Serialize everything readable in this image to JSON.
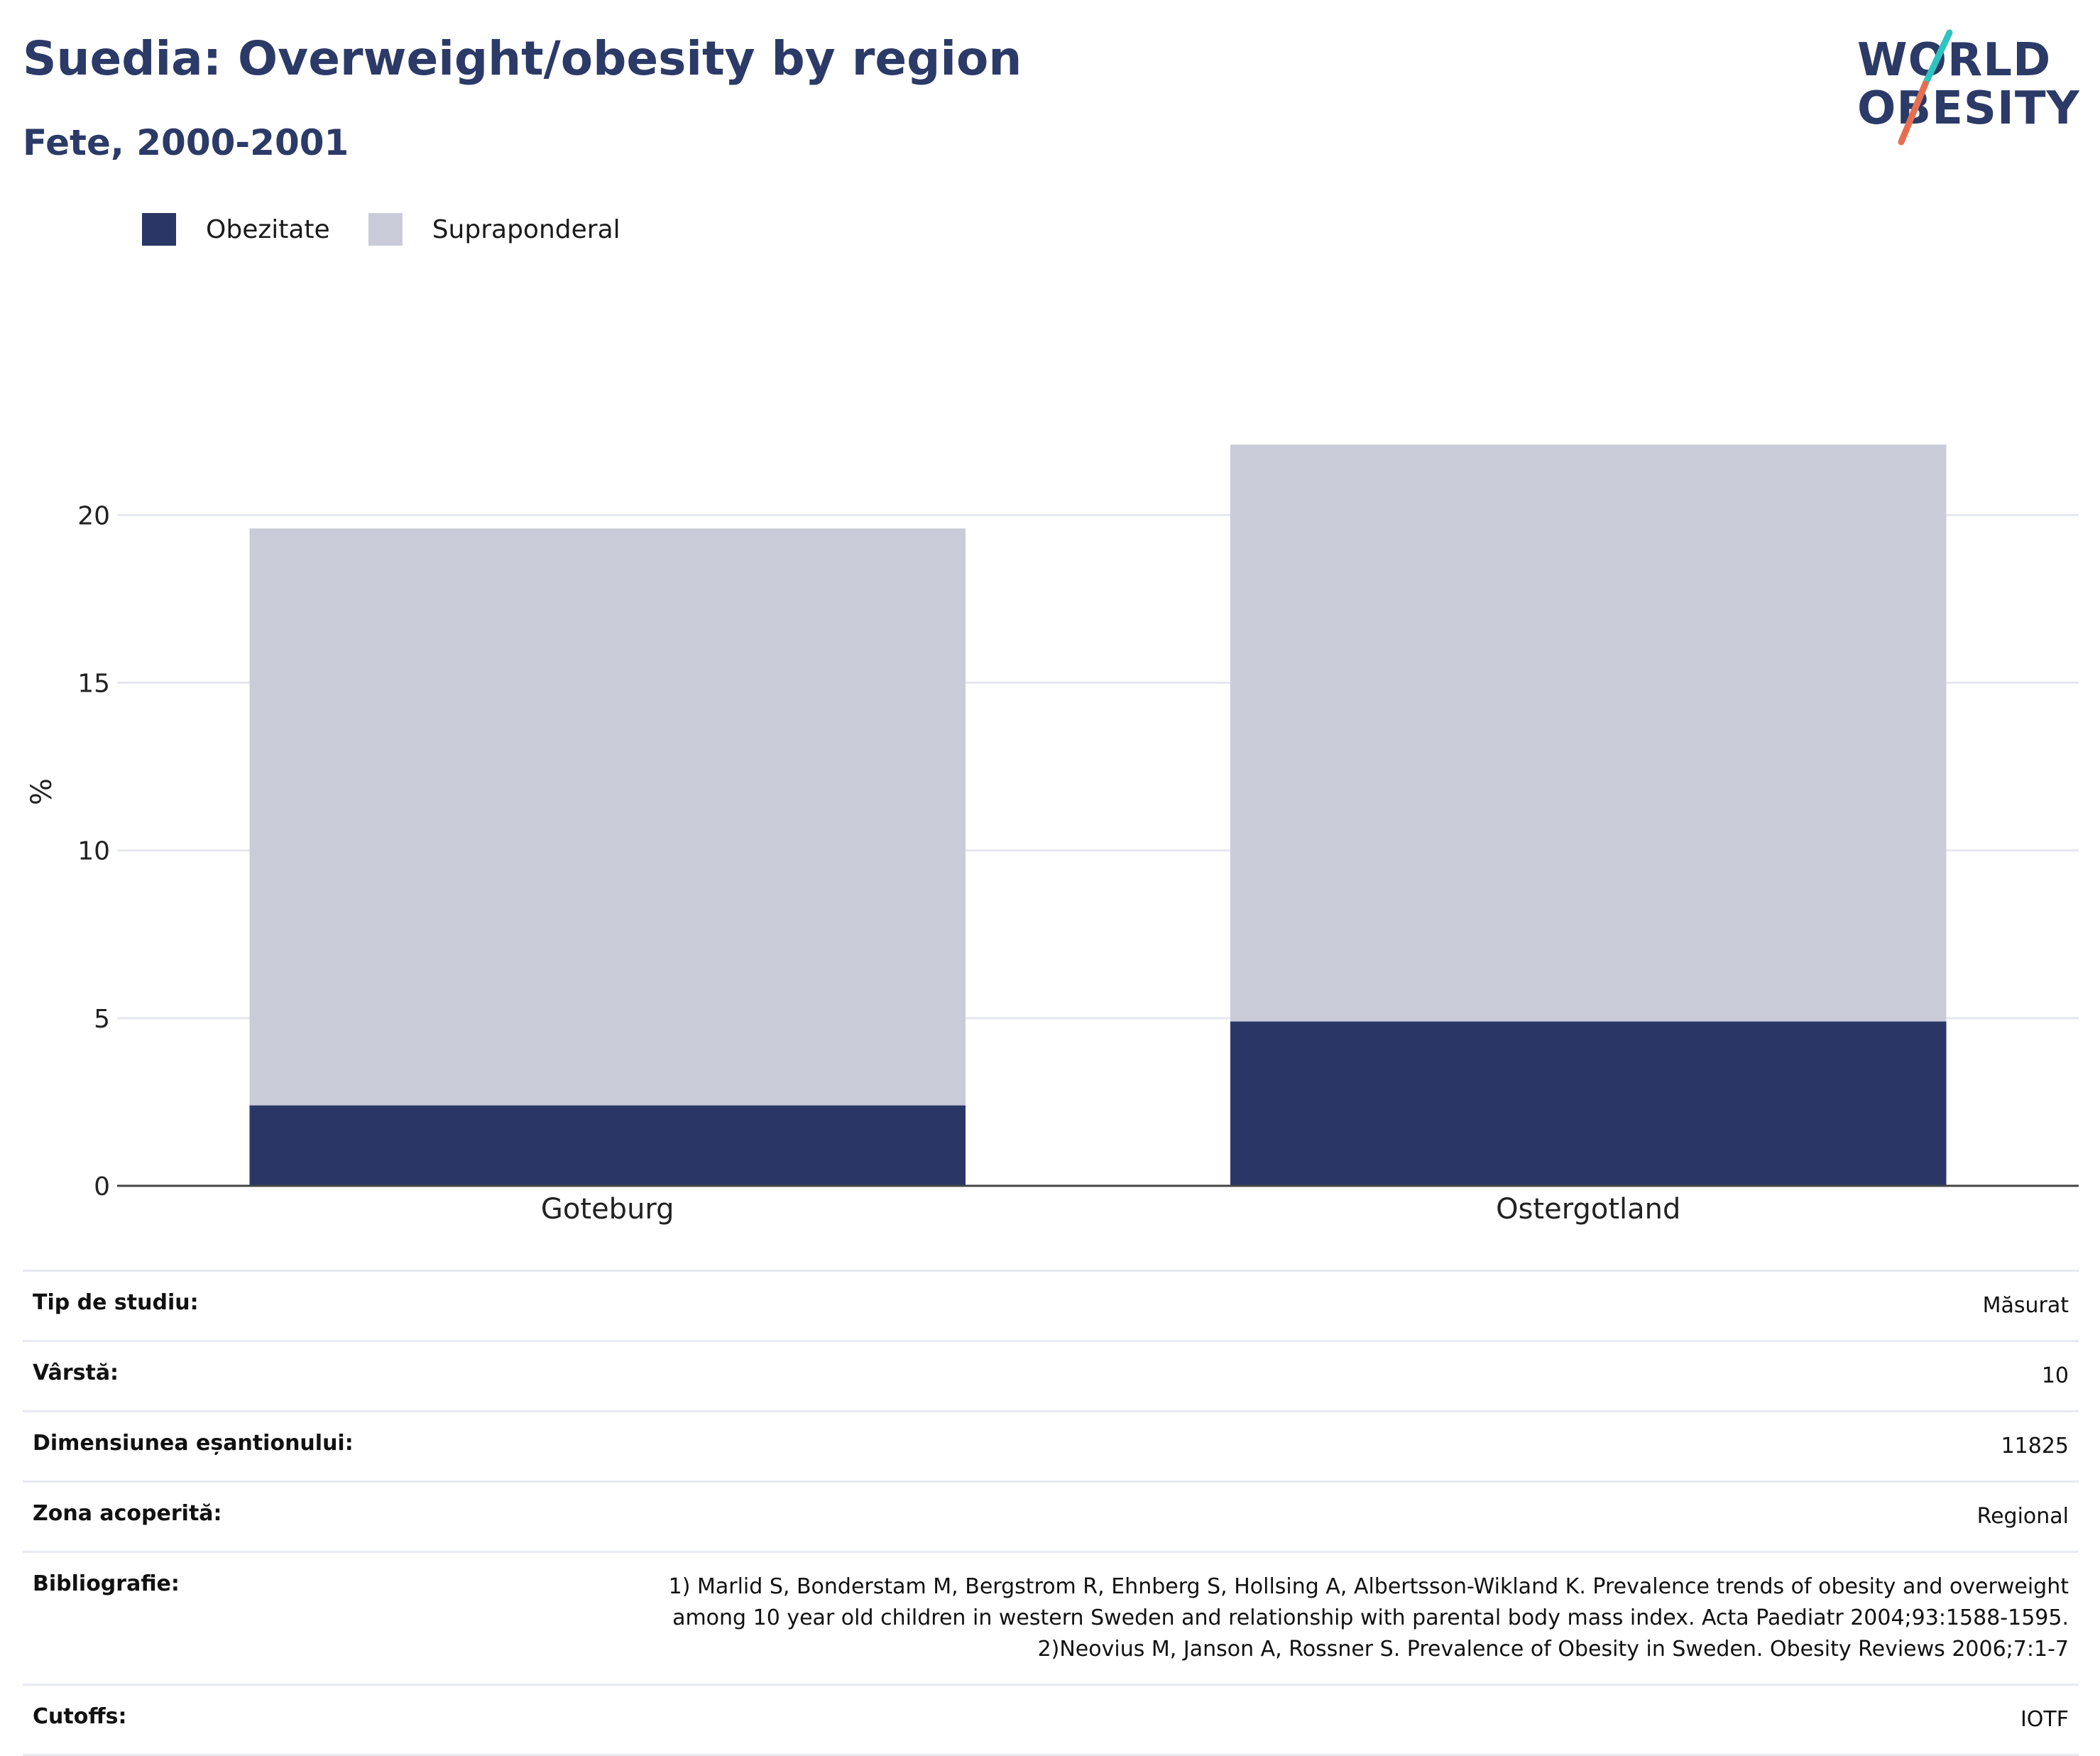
{
  "header": {
    "title": "Suedia: Overweight/obesity by region",
    "subtitle": "Fete, 2000-2001"
  },
  "logo": {
    "line1": "WORLD",
    "line2": "OBESITY",
    "accent_colors": [
      "#2ec4c0",
      "#e76f51"
    ]
  },
  "legend": [
    {
      "label": "Obezitate",
      "color": "#2a3766"
    },
    {
      "label": "Supraponderal",
      "color": "#c9ccd8"
    }
  ],
  "chart_data": {
    "type": "bar",
    "stacked": true,
    "categories": [
      "Goteburg",
      "Ostergotland"
    ],
    "series": [
      {
        "name": "Obezitate",
        "values": [
          2.4,
          4.9
        ],
        "color": "#2a3766"
      },
      {
        "name": "Supraponderal",
        "values": [
          17.2,
          17.2
        ],
        "color": "#c9ccd8"
      }
    ],
    "ylabel": "%",
    "ylim": [
      0,
      23.5
    ],
    "yticks": [
      0,
      5,
      10,
      15,
      20
    ],
    "grid": true,
    "legend_position": "top-left"
  },
  "info": [
    {
      "key": "Tip de studiu:",
      "value": "Măsurat"
    },
    {
      "key": "Vârstă:",
      "value": "10"
    },
    {
      "key": "Dimensiunea eșantionului:",
      "value": "11825"
    },
    {
      "key": "Zona acoperită:",
      "value": "Regional"
    },
    {
      "key": "Bibliografie:",
      "value_lines": [
        "1) Marlid S, Bonderstam M, Bergstrom R, Ehnberg S, Hollsing A, Albertsson-Wikland K. Prevalence trends of obesity and overweight",
        "among 10 year old children in western Sweden and relationship with parental body mass index. Acta Paediatr 2004;93:1588-1595.",
        "2)Neovius M, Janson A, Rossner S. Prevalence of Obesity in Sweden. Obesity Reviews 2006;7:1-7"
      ]
    },
    {
      "key": "Cutoffs:",
      "value": "IOTF"
    }
  ]
}
